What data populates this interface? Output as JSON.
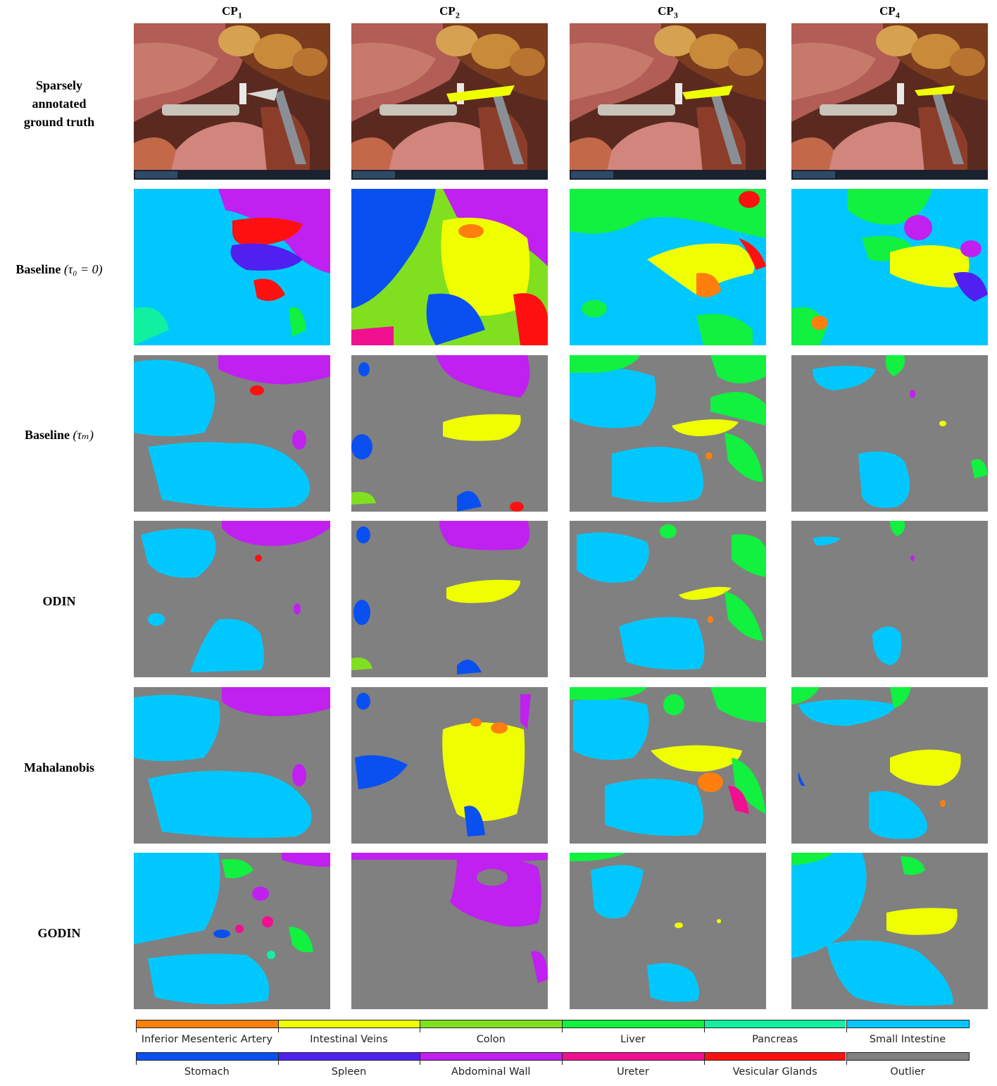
{
  "columns": [
    {
      "label": "CP",
      "sub": "1"
    },
    {
      "label": "CP",
      "sub": "2"
    },
    {
      "label": "CP",
      "sub": "3"
    },
    {
      "label": "CP",
      "sub": "4"
    }
  ],
  "rows": [
    {
      "label_lines": [
        "Sparsely",
        "annotated",
        "ground truth"
      ],
      "math": ""
    },
    {
      "label_lines": [
        "Baseline"
      ],
      "math": "(τ₀ = 0)"
    },
    {
      "label_lines": [
        "Baseline"
      ],
      "math": "(τₘ)"
    },
    {
      "label_lines": [
        "ODIN"
      ],
      "math": ""
    },
    {
      "label_lines": [
        "Mahalanobis"
      ],
      "math": ""
    },
    {
      "label_lines": [
        "GODIN"
      ],
      "math": ""
    }
  ],
  "legend": {
    "row1": [
      {
        "label": "Inferior Mesenteric Artery",
        "color": "#ff7f0e"
      },
      {
        "label": "Intestinal Veins",
        "color": "#f0ff00"
      },
      {
        "label": "Colon",
        "color": "#80e020"
      },
      {
        "label": "Liver",
        "color": "#12f040"
      },
      {
        "label": "Pancreas",
        "color": "#10f0a0"
      },
      {
        "label": "Small Intestine",
        "color": "#00c8ff"
      }
    ],
    "row2": [
      {
        "label": "Stomach",
        "color": "#0a50f0"
      },
      {
        "label": "Spleen",
        "color": "#5020f0"
      },
      {
        "label": "Abdominal Wall",
        "color": "#c020f0"
      },
      {
        "label": "Ureter",
        "color": "#f01090"
      },
      {
        "label": "Vesicular Glands",
        "color": "#ff1010"
      },
      {
        "label": "Outlier",
        "color": "#808080"
      }
    ]
  }
}
